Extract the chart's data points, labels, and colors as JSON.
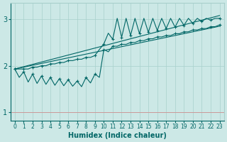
{
  "xlabel": "Humidex (Indice chaleur)",
  "xlim": [
    -0.5,
    23.5
  ],
  "ylim": [
    0.82,
    3.35
  ],
  "yticks": [
    1,
    2,
    3
  ],
  "xticks": [
    0,
    1,
    2,
    3,
    4,
    5,
    6,
    7,
    8,
    9,
    10,
    11,
    12,
    13,
    14,
    15,
    16,
    17,
    18,
    19,
    20,
    21,
    22,
    23
  ],
  "background_color": "#cce8e6",
  "grid_color": "#a8d0cc",
  "line_color": "#006666",
  "hline_color": "#cc9999",
  "figsize": [
    3.2,
    2.0
  ],
  "dpi": 100,
  "trend1_x": [
    0,
    23
  ],
  "trend1_y": [
    1.93,
    2.85
  ],
  "trend2_x": [
    0,
    23
  ],
  "trend2_y": [
    1.93,
    3.08
  ],
  "zigzag_upper_base": [
    1.93,
    1.93,
    1.97,
    2.0,
    2.04,
    2.07,
    2.11,
    2.14,
    2.18,
    2.22,
    2.47,
    2.57,
    2.61,
    2.65,
    2.69,
    2.72,
    2.76,
    2.8,
    2.83,
    2.87,
    2.91,
    2.95,
    2.98,
    3.02
  ],
  "zigzag_upper_peak": [
    1.93,
    1.93,
    1.97,
    2.0,
    2.04,
    2.07,
    2.11,
    2.14,
    2.18,
    2.35,
    2.7,
    3.02,
    3.02,
    3.02,
    3.02,
    3.02,
    3.02,
    3.02,
    3.02,
    3.02,
    3.02,
    3.02,
    3.02,
    3.02
  ],
  "zigzag_lower_base": [
    1.93,
    1.87,
    1.82,
    1.78,
    1.75,
    1.72,
    1.7,
    1.67,
    1.75,
    1.82,
    2.35,
    2.42,
    2.46,
    2.5,
    2.54,
    2.58,
    2.62,
    2.65,
    2.69,
    2.73,
    2.77,
    2.8,
    2.84,
    2.88
  ],
  "zigzag_lower_valley": [
    1.75,
    1.65,
    1.62,
    1.6,
    1.58,
    1.57,
    1.56,
    1.55,
    1.63,
    1.75,
    2.3,
    2.42,
    2.46,
    2.5,
    2.54,
    2.58,
    2.62,
    2.65,
    2.69,
    2.73,
    2.77,
    2.8,
    2.84,
    2.88
  ]
}
